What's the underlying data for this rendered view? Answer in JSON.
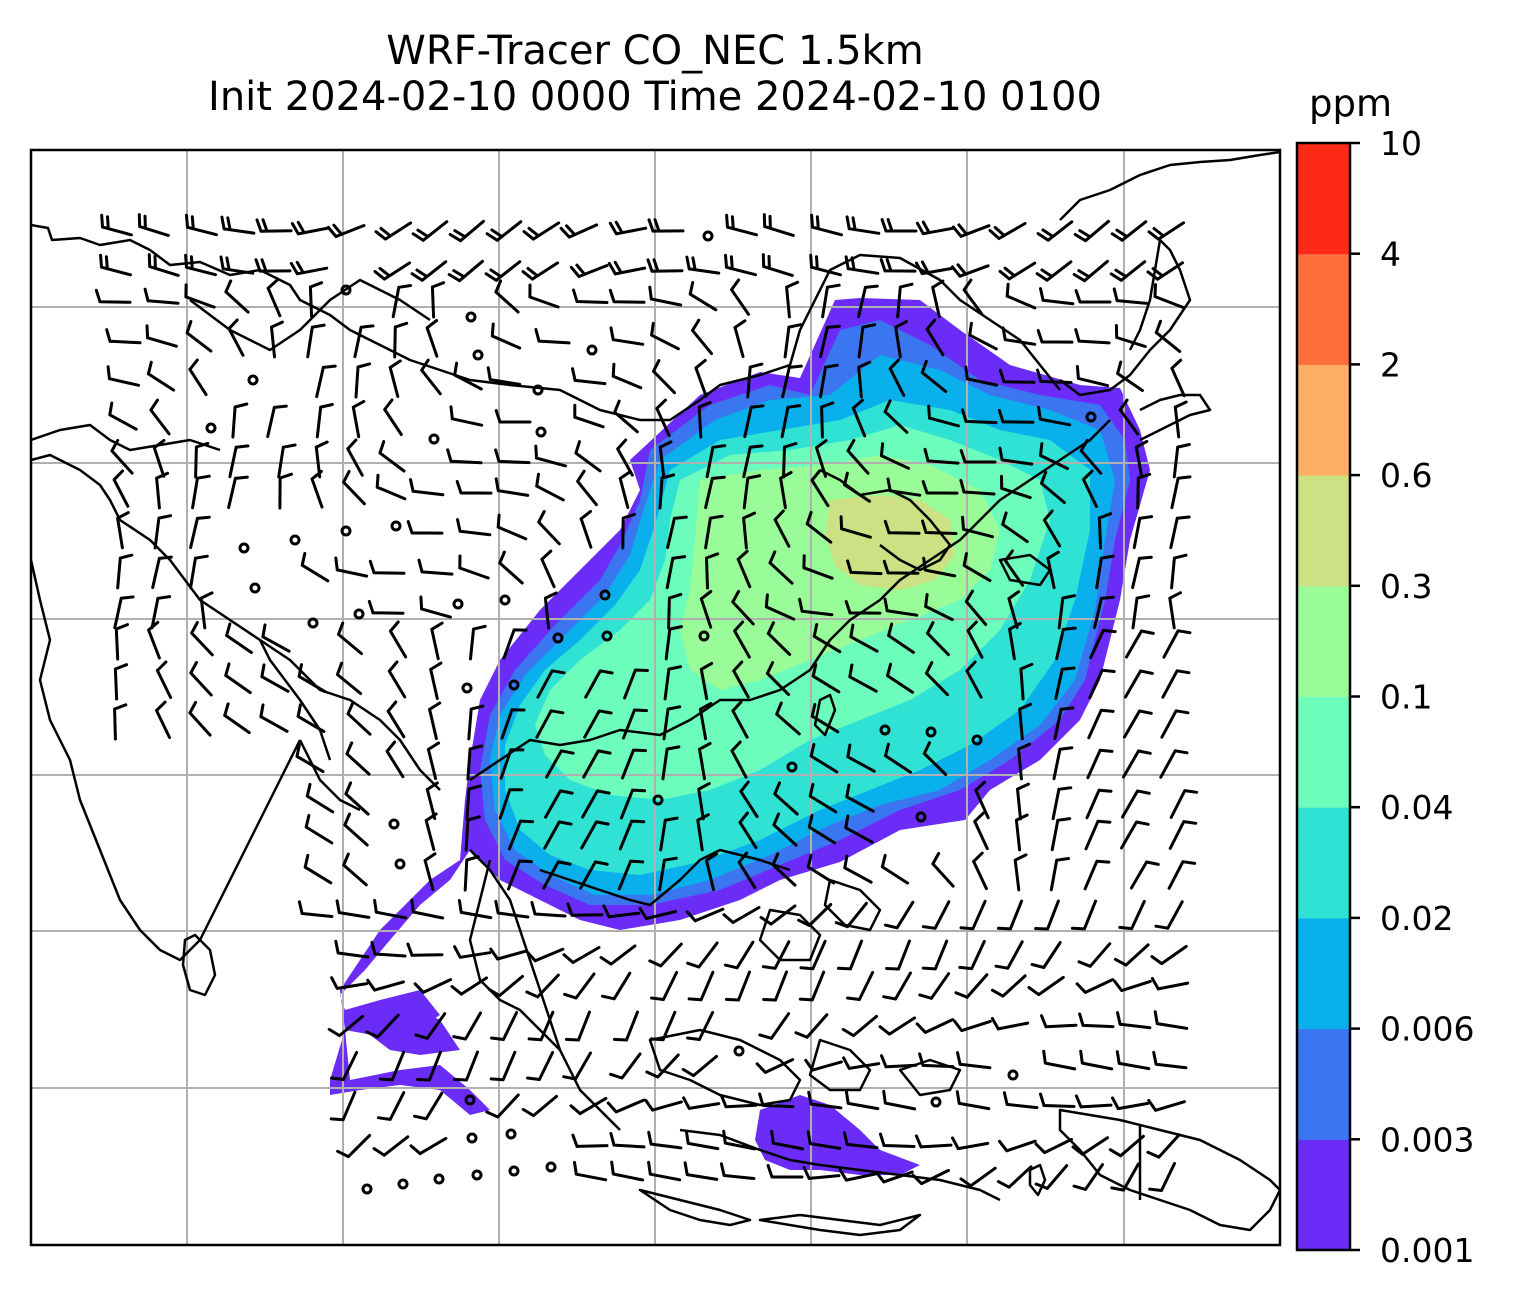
{
  "title": {
    "line1": "WRF-Tracer CO_NEC 1.5km",
    "line2": "Init 2024-02-10 0000 Time 2024-02-10 0100"
  },
  "colorbar": {
    "unit": "ppm",
    "levels": [
      "0.001",
      "0.003",
      "0.006",
      "0.02",
      "0.04",
      "0.1",
      "0.3",
      "0.6",
      "2",
      "4",
      "10"
    ],
    "colors": [
      "#6a2cf6",
      "#3a76f0",
      "#09b0ec",
      "#30e2d4",
      "#6cfcbc",
      "#9afc98",
      "#cce084",
      "#fcae62",
      "#fc6e3c",
      "#fc2a16"
    ]
  },
  "map": {
    "gridlines": "on",
    "grid_color": "#b0b0b0",
    "coastline_color": "#000000",
    "barb_color": "#000000"
  }
}
